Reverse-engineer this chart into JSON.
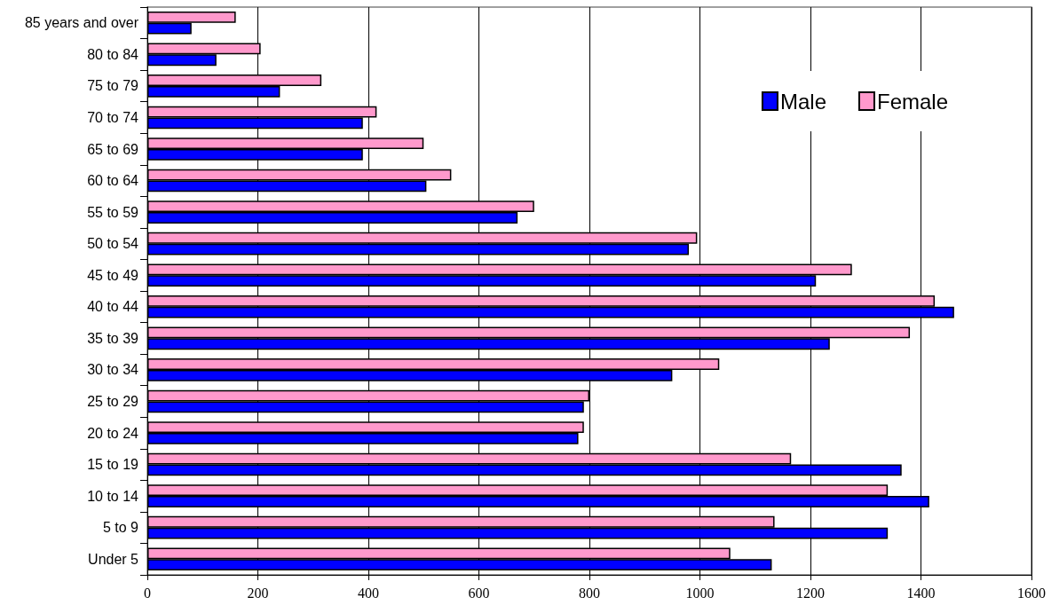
{
  "chart_data": {
    "type": "bar",
    "orientation": "horizontal",
    "categories": [
      "85 years and over",
      "80 to 84",
      "75 to 79",
      "70 to 74",
      "65 to 69",
      "60 to 64",
      "55 to 59",
      "50 to 54",
      "45 to 49",
      "40 to 44",
      "35 to 39",
      "30 to 34",
      "25 to 29",
      "20 to 24",
      "15 to 19",
      "10 to 14",
      "5 to 9",
      "Under 5"
    ],
    "series": [
      {
        "name": "Male",
        "color": "#0000ff",
        "values": [
          80,
          125,
          240,
          390,
          390,
          505,
          670,
          980,
          1210,
          1460,
          1235,
          950,
          790,
          780,
          1365,
          1415,
          1340,
          1130
        ]
      },
      {
        "name": "Female",
        "color": "#ff99cc",
        "values": [
          160,
          205,
          315,
          415,
          500,
          550,
          700,
          995,
          1275,
          1425,
          1380,
          1035,
          800,
          790,
          1165,
          1340,
          1135,
          1055
        ]
      }
    ],
    "xlim": [
      0,
      1600
    ],
    "xticks": [
      0,
      200,
      400,
      600,
      800,
      1000,
      1200,
      1400,
      1600
    ],
    "grid": "x",
    "legend": "top right"
  }
}
